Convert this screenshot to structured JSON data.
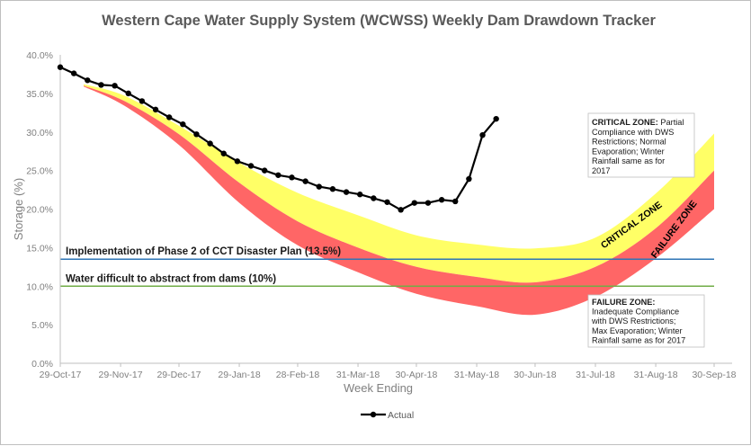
{
  "chart_data": {
    "type": "line",
    "title": "Western Cape Water Supply System (WCWSS) Weekly Dam Drawdown Tracker",
    "xlabel": "Week Ending",
    "ylabel": "Storage (%)",
    "x_range": [
      "2017-10-29",
      "2018-09-30"
    ],
    "ylim": [
      0,
      40
    ],
    "x_tick_labels": [
      "29-Oct-17",
      "29-Nov-17",
      "29-Dec-17",
      "29-Jan-18",
      "28-Feb-18",
      "31-Mar-18",
      "30-Apr-18",
      "31-May-18",
      "30-Jun-18",
      "31-Jul-18",
      "31-Aug-18",
      "30-Sep-18"
    ],
    "x_tick_dates": [
      "2017-10-29",
      "2017-11-29",
      "2017-12-29",
      "2018-01-29",
      "2018-02-28",
      "2018-03-31",
      "2018-04-30",
      "2018-05-31",
      "2018-06-30",
      "2018-07-31",
      "2018-08-31",
      "2018-09-30"
    ],
    "y_ticks": [
      0,
      5,
      10,
      15,
      20,
      25,
      30,
      35,
      40
    ],
    "y_tick_labels": [
      "0.0%",
      "5.0%",
      "10.0%",
      "15.0%",
      "20.0%",
      "25.0%",
      "30.0%",
      "35.0%",
      "40.0%"
    ],
    "grid": false,
    "legend": {
      "position": "bottom",
      "entries": [
        "Actual"
      ]
    },
    "series": [
      {
        "name": "Actual",
        "color": "#000000",
        "x": [
          "2017-10-29",
          "2017-11-05",
          "2017-11-12",
          "2017-11-19",
          "2017-11-26",
          "2017-12-03",
          "2017-12-10",
          "2017-12-17",
          "2017-12-24",
          "2017-12-31",
          "2018-01-07",
          "2018-01-14",
          "2018-01-21",
          "2018-01-28",
          "2018-02-04",
          "2018-02-11",
          "2018-02-18",
          "2018-02-25",
          "2018-03-04",
          "2018-03-11",
          "2018-03-18",
          "2018-03-25",
          "2018-04-01",
          "2018-04-08",
          "2018-04-15",
          "2018-04-22",
          "2018-04-29",
          "2018-05-06",
          "2018-05-13",
          "2018-05-20",
          "2018-05-27",
          "2018-06-03",
          "2018-06-10"
        ],
        "values": [
          38.4,
          37.6,
          36.7,
          36.1,
          36.0,
          35.0,
          34.0,
          32.9,
          31.9,
          31.0,
          29.7,
          28.5,
          27.2,
          26.2,
          25.6,
          25.0,
          24.4,
          24.1,
          23.6,
          22.9,
          22.6,
          22.2,
          21.9,
          21.4,
          20.9,
          19.9,
          20.8,
          20.8,
          21.2,
          21.0,
          23.9,
          29.6,
          31.7
        ]
      }
    ],
    "bands": [
      {
        "name": "CRITICAL ZONE",
        "color": "#ffff66",
        "x": [
          "2017-11-10",
          "2017-12-01",
          "2017-12-29",
          "2018-01-29",
          "2018-02-28",
          "2018-03-31",
          "2018-04-30",
          "2018-05-31",
          "2018-06-30",
          "2018-07-31",
          "2018-08-31",
          "2018-09-30"
        ],
        "upper": [
          36.2,
          34.7,
          30.8,
          26.0,
          22.1,
          19.2,
          16.6,
          15.4,
          14.9,
          16.3,
          22.0,
          29.8
        ],
        "lower": [
          36.0,
          34.0,
          29.7,
          23.4,
          18.4,
          15.0,
          12.5,
          11.2,
          10.5,
          12.5,
          17.5,
          25.0
        ]
      },
      {
        "name": "FAILURE ZONE",
        "color": "#ff6666",
        "x": [
          "2017-11-10",
          "2017-12-01",
          "2017-12-29",
          "2018-01-29",
          "2018-02-28",
          "2018-03-31",
          "2018-04-30",
          "2018-05-31",
          "2018-06-30",
          "2018-07-31",
          "2018-08-31",
          "2018-09-30"
        ],
        "upper": [
          36.0,
          34.0,
          29.7,
          23.4,
          18.4,
          15.0,
          12.5,
          11.2,
          10.5,
          12.5,
          17.5,
          25.0
        ],
        "lower": [
          35.9,
          33.4,
          28.3,
          20.8,
          15.3,
          11.8,
          9.0,
          7.4,
          6.3,
          8.6,
          13.6,
          20.0
        ]
      }
    ],
    "reference_lines": [
      {
        "label": "Implementation of Phase 2 of CCT Disaster Plan (13.5%)",
        "value": 13.5,
        "color": "#2e75b6"
      },
      {
        "label": "Water difficult to abstract from dams (10%)",
        "value": 10,
        "color": "#70ad47"
      }
    ],
    "zone_labels": {
      "critical": "CRITICAL ZONE",
      "failure": "FAILURE ZONE"
    },
    "annotations": [
      {
        "id": "critical",
        "heading": "CRITICAL ZONE",
        "lines": [
          "CRITICAL ZONE: Partial",
          "Compliance with DWS",
          "Restrictions; Normal",
          "Evaporation; Winter",
          "Rainfall same as for",
          "2017"
        ]
      },
      {
        "id": "failure",
        "heading": "FAILURE ZONE",
        "lines": [
          "FAILURE ZONE:",
          "Inadequate Compliance",
          "with DWS Restrictions;",
          "Max Evaporation; Winter",
          "Rainfall same as for 2017"
        ]
      }
    ]
  }
}
